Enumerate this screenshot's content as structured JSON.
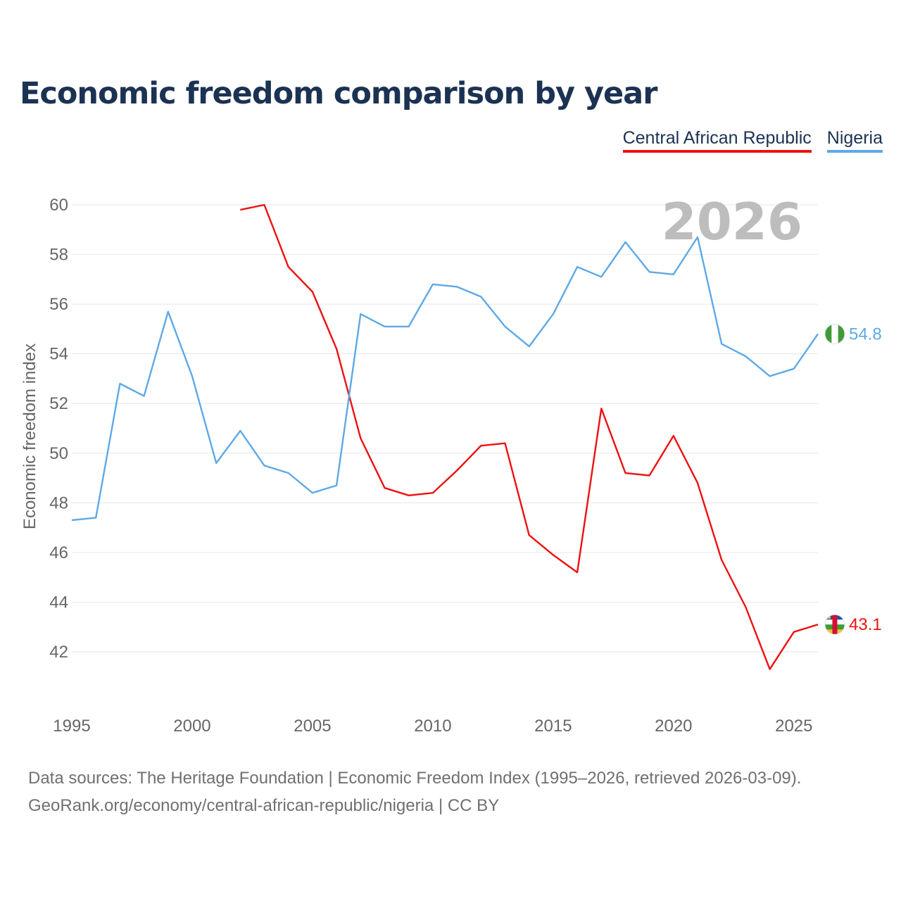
{
  "title": "Economic freedom comparison by year",
  "watermark_year": "2026",
  "footer": {
    "line1": "Data sources: The Heritage Foundation | Economic Freedom Index (1995–2026, retrieved 2026-03-09).",
    "line2": "GeoRank.org/economy/central-african-republic/nigeria | CC BY"
  },
  "chart_data": {
    "type": "line",
    "title": "Economic freedom comparison by year",
    "xlabel": "",
    "ylabel": "Economic freedom index",
    "xlim": [
      1995,
      2026
    ],
    "ylim": [
      40,
      62
    ],
    "x_ticks": [
      1995,
      2000,
      2005,
      2010,
      2015,
      2020,
      2025
    ],
    "y_ticks": [
      42,
      44,
      46,
      48,
      50,
      52,
      54,
      56,
      58,
      60
    ],
    "grid": true,
    "legend_position": "top-right",
    "series": [
      {
        "name": "Central African Republic",
        "color": "#ee1111",
        "end_label": "43.1",
        "icon": "central-african-republic-flag-icon",
        "points": [
          [
            2002,
            59.8
          ],
          [
            2003,
            60.0
          ],
          [
            2004,
            57.5
          ],
          [
            2005,
            56.5
          ],
          [
            2006,
            54.2
          ],
          [
            2007,
            50.6
          ],
          [
            2008,
            48.6
          ],
          [
            2009,
            48.3
          ],
          [
            2010,
            48.4
          ],
          [
            2011,
            49.3
          ],
          [
            2012,
            50.3
          ],
          [
            2013,
            50.4
          ],
          [
            2014,
            46.7
          ],
          [
            2015,
            45.9
          ],
          [
            2016,
            45.2
          ],
          [
            2017,
            51.8
          ],
          [
            2018,
            49.2
          ],
          [
            2019,
            49.1
          ],
          [
            2020,
            50.7
          ],
          [
            2021,
            48.8
          ],
          [
            2022,
            45.7
          ],
          [
            2023,
            43.8
          ],
          [
            2024,
            41.3
          ],
          [
            2025,
            42.8
          ],
          [
            2026,
            43.1
          ]
        ]
      },
      {
        "name": "Nigeria",
        "color": "#5ea9e6",
        "end_label": "54.8",
        "icon": "nigeria-flag-icon",
        "points": [
          [
            1995,
            47.3
          ],
          [
            1996,
            47.4
          ],
          [
            1997,
            52.8
          ],
          [
            1998,
            52.3
          ],
          [
            1999,
            55.7
          ],
          [
            2000,
            53.1
          ],
          [
            2001,
            49.6
          ],
          [
            2002,
            50.9
          ],
          [
            2003,
            49.5
          ],
          [
            2004,
            49.2
          ],
          [
            2005,
            48.4
          ],
          [
            2006,
            48.7
          ],
          [
            2007,
            55.6
          ],
          [
            2008,
            55.1
          ],
          [
            2009,
            55.1
          ],
          [
            2010,
            56.8
          ],
          [
            2011,
            56.7
          ],
          [
            2012,
            56.3
          ],
          [
            2013,
            55.1
          ],
          [
            2014,
            54.3
          ],
          [
            2015,
            55.6
          ],
          [
            2016,
            57.5
          ],
          [
            2017,
            57.1
          ],
          [
            2018,
            58.5
          ],
          [
            2019,
            57.3
          ],
          [
            2020,
            57.2
          ],
          [
            2021,
            58.7
          ],
          [
            2022,
            54.4
          ],
          [
            2023,
            53.9
          ],
          [
            2024,
            53.1
          ],
          [
            2025,
            53.4
          ],
          [
            2026,
            54.8
          ]
        ]
      }
    ]
  }
}
